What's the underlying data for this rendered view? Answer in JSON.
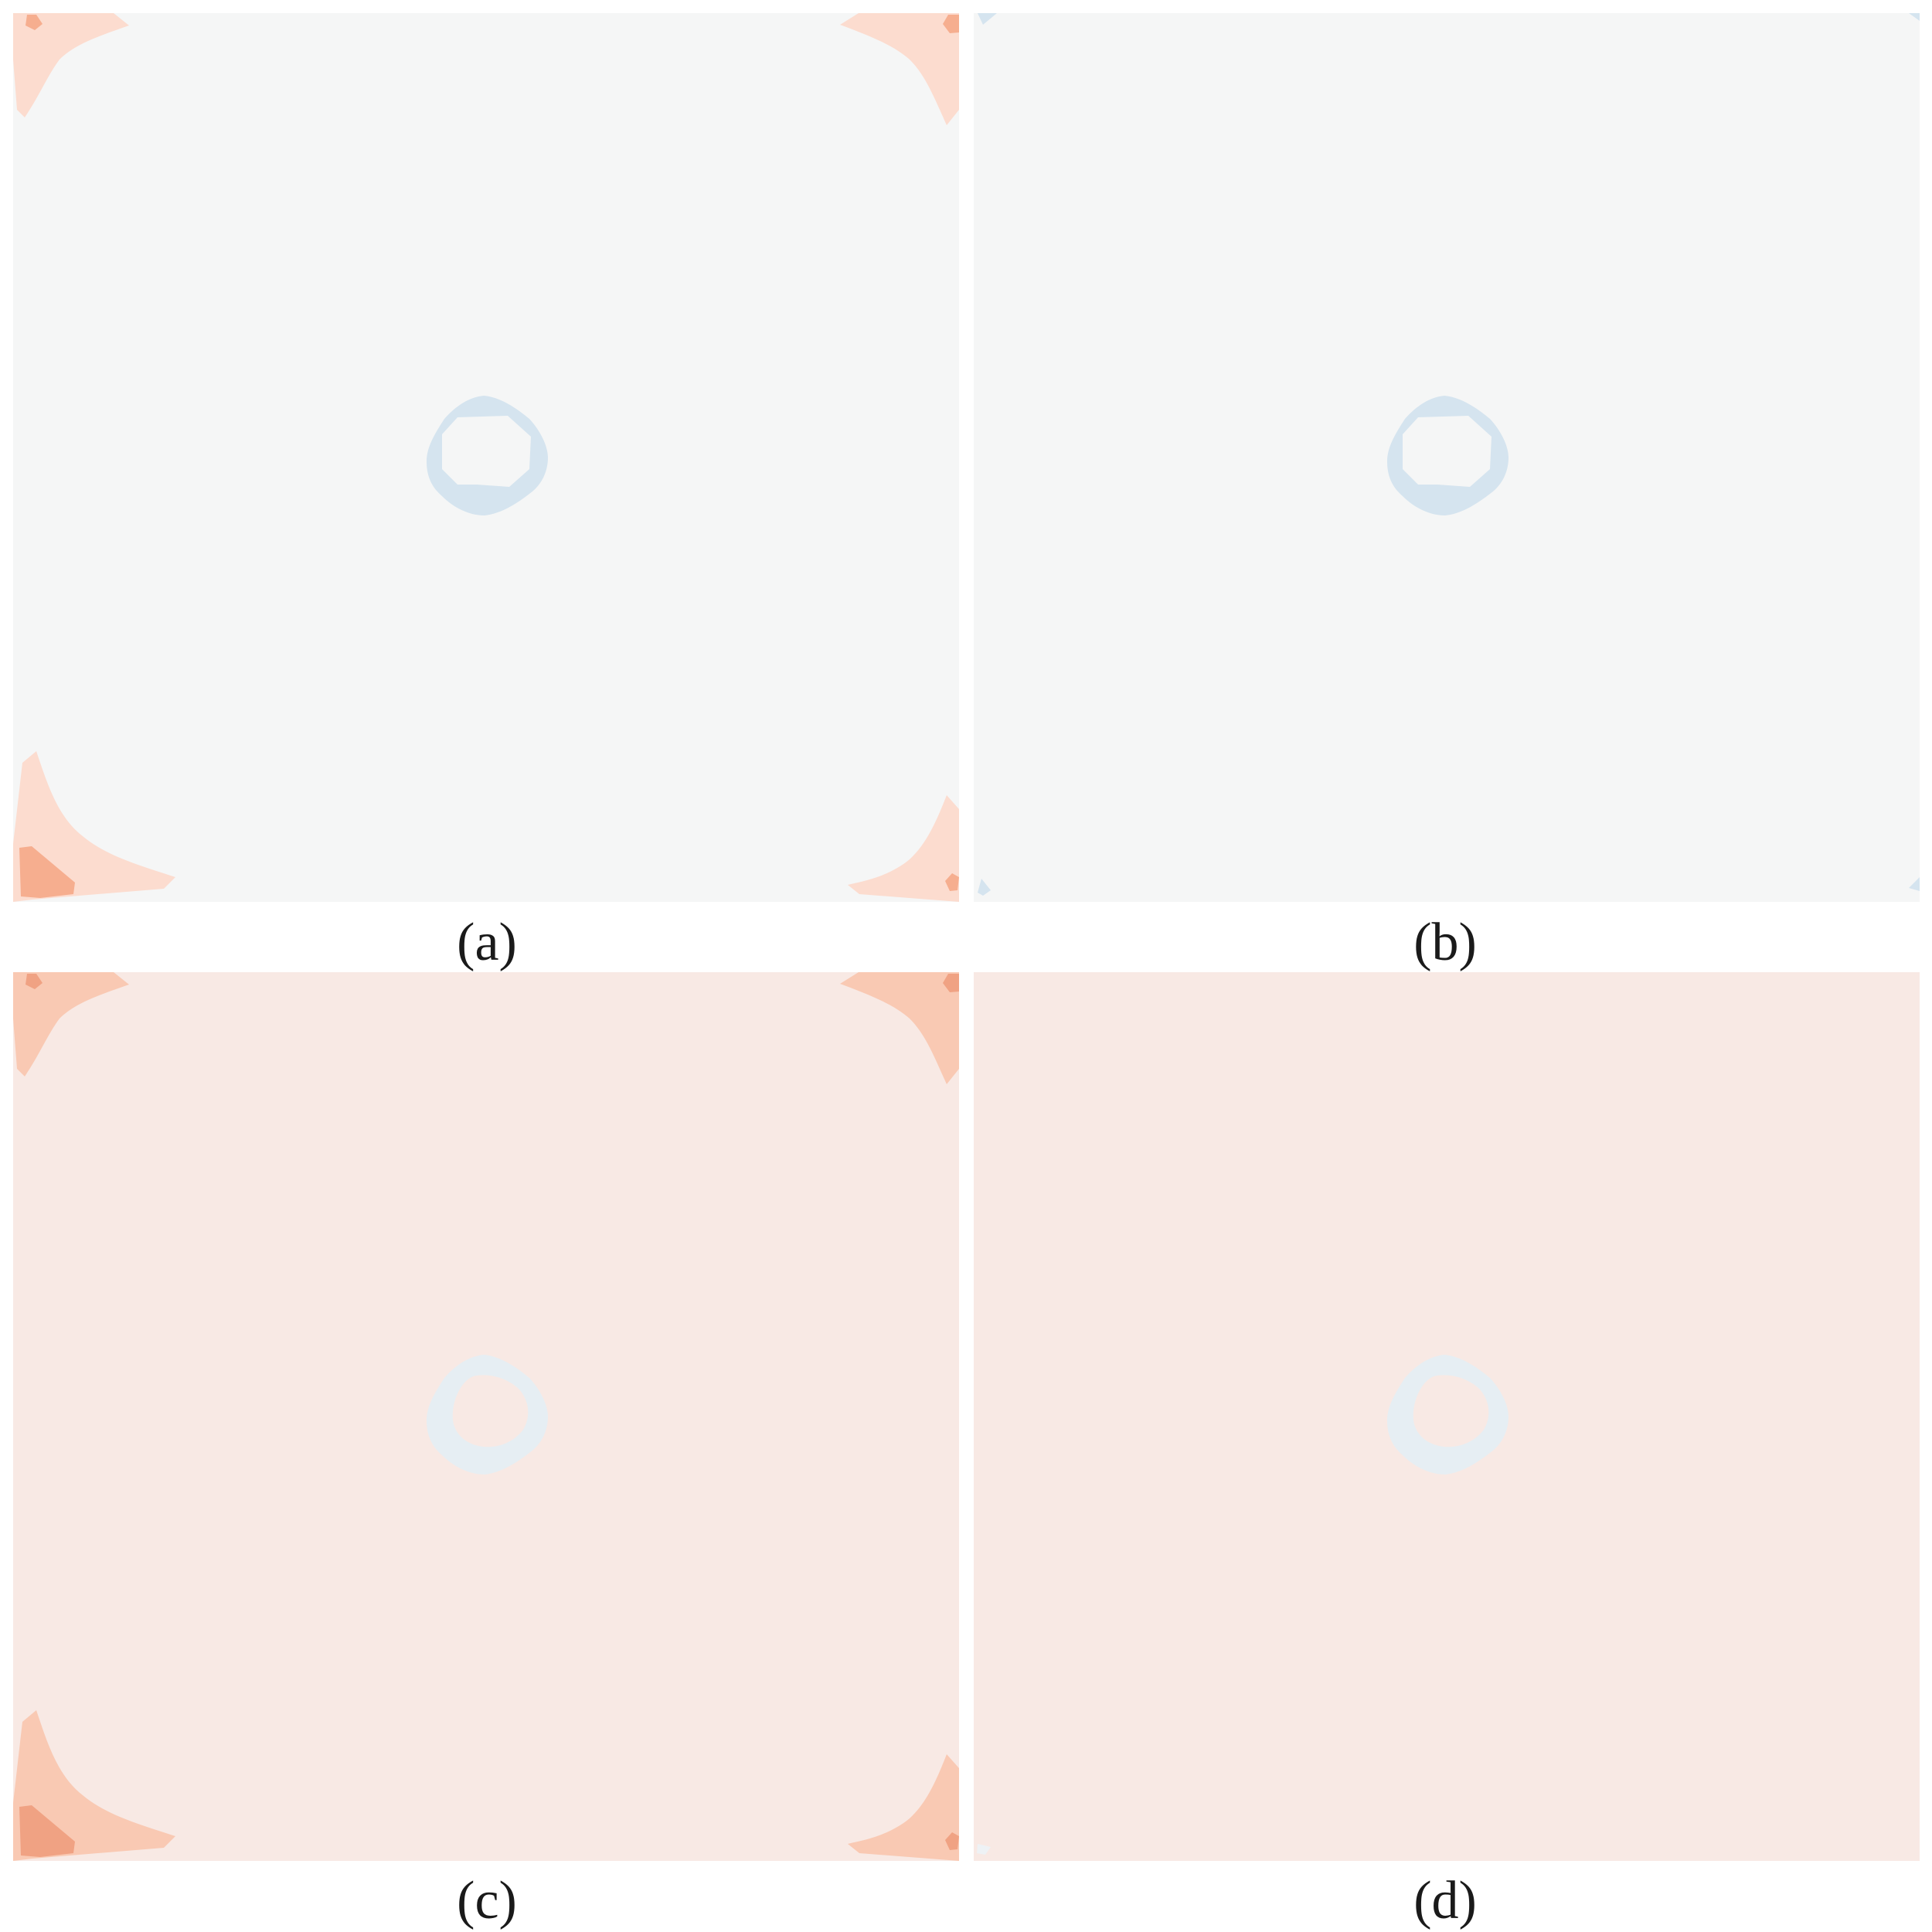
{
  "figure": {
    "panels": [
      {
        "id": "a",
        "caption": "(a)",
        "background": "#f5f6f6",
        "ring_color": "#d5e4ef",
        "ring_inner_color": "#f5f6f6"
      },
      {
        "id": "b",
        "caption": "(b)",
        "background": "#f5f6f6",
        "ring_color": "#d5e4ef",
        "ring_inner_color": "#f5f6f6"
      },
      {
        "id": "c",
        "caption": "(c)",
        "background": "#f8e9e4",
        "ring_color": "#e6eef3",
        "ring_inner_color": "#f8e9e4"
      },
      {
        "id": "d",
        "caption": "(d)",
        "background": "#f8e9e4",
        "ring_color": "#e6eef3",
        "ring_inner_color": "#f8e9e4"
      }
    ],
    "colors": {
      "contour_light_a": "#fcdccf",
      "contour_mid_a": "#f6ae8f",
      "contour_light_c": "#f9c9b3",
      "contour_mid_c": "#f0a283",
      "corner_blue_b": "#d5e4ef",
      "corner_blue_d": "#eef2f5"
    }
  }
}
